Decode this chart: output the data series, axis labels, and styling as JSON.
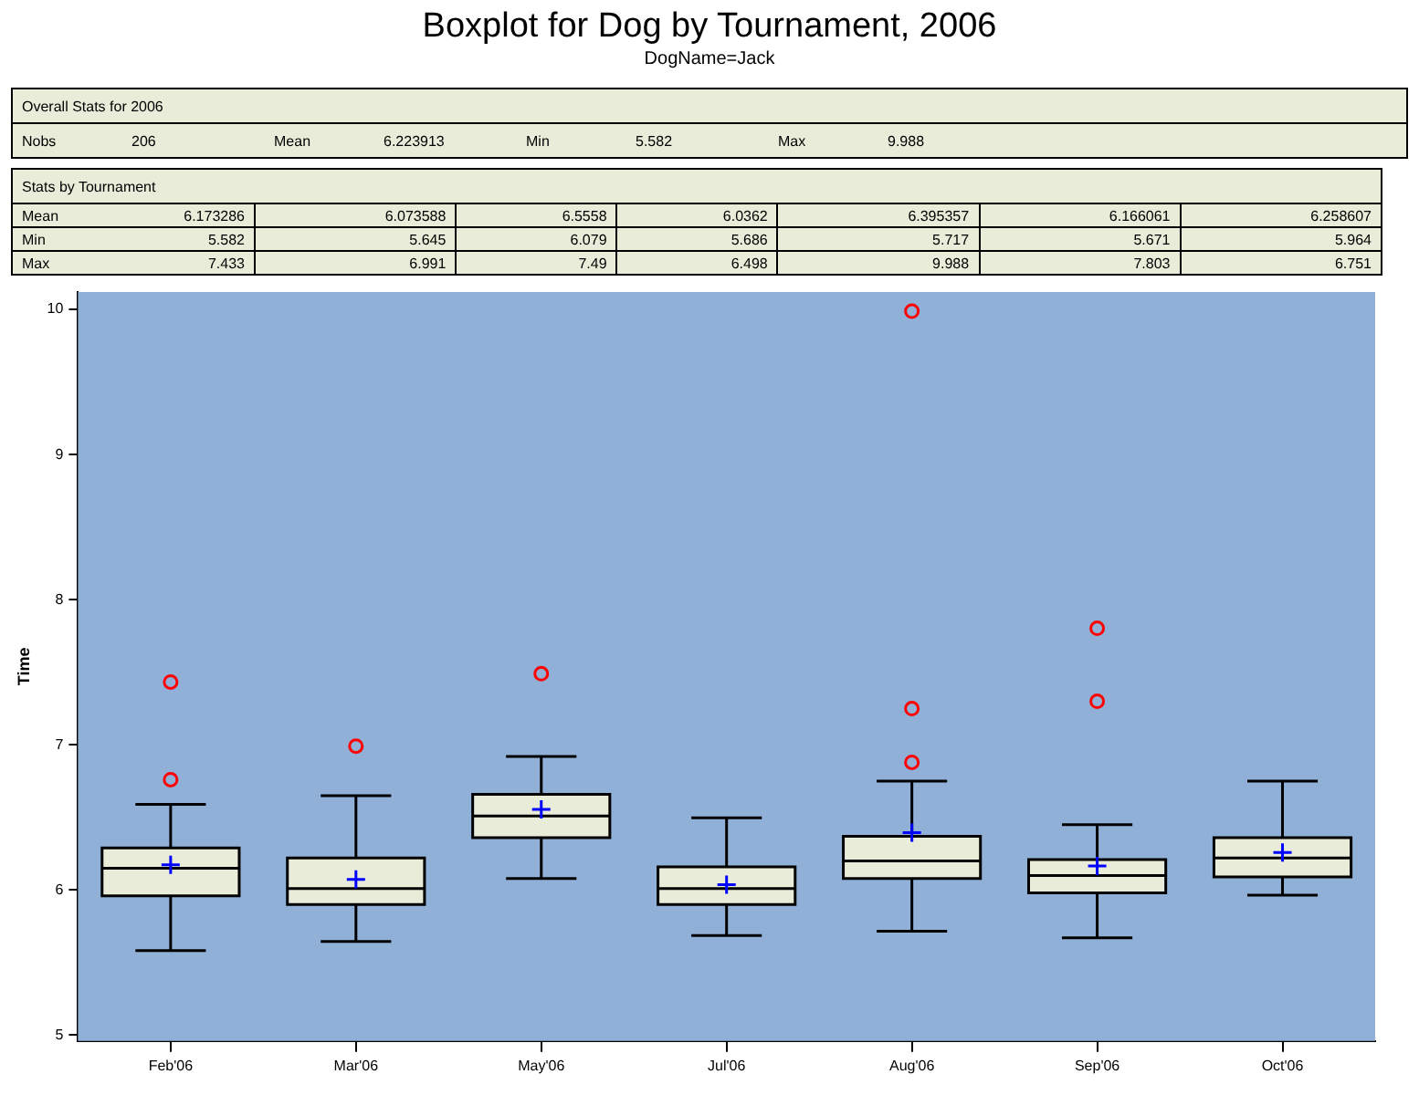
{
  "chart_data": {
    "type": "box",
    "title": "Boxplot for Dog by Tournament, 2006",
    "subtitle": "DogName=Jack",
    "ylabel": "Time",
    "categories": [
      "Feb'06",
      "Mar'06",
      "May'06",
      "Jul'06",
      "Aug'06",
      "Sep'06",
      "Oct'06"
    ],
    "color": "#e8ecd8",
    "boxes": [
      {
        "low": 5.582,
        "q1": 5.96,
        "median": 6.15,
        "q3": 6.29,
        "high": 6.59,
        "mean": 6.173286,
        "outliers": [
          7.433,
          6.76
        ]
      },
      {
        "low": 5.645,
        "q1": 5.9,
        "median": 6.01,
        "q3": 6.22,
        "high": 6.65,
        "mean": 6.073588,
        "outliers": [
          6.991
        ]
      },
      {
        "low": 6.079,
        "q1": 6.36,
        "median": 6.51,
        "q3": 6.66,
        "high": 6.92,
        "mean": 6.5558,
        "outliers": [
          7.49
        ]
      },
      {
        "low": 5.686,
        "q1": 5.9,
        "median": 6.01,
        "q3": 6.16,
        "high": 6.498,
        "mean": 6.0362
      },
      {
        "low": 5.717,
        "q1": 6.08,
        "median": 6.2,
        "q3": 6.37,
        "high": 6.75,
        "mean": 6.395357,
        "outliers": [
          9.988,
          7.25,
          6.88
        ]
      },
      {
        "low": 5.671,
        "q1": 5.98,
        "median": 6.1,
        "q3": 6.21,
        "high": 6.45,
        "mean": 6.166061,
        "outliers": [
          7.803,
          7.3
        ]
      },
      {
        "low": 5.964,
        "q1": 6.09,
        "median": 6.22,
        "q3": 6.36,
        "high": 6.751,
        "mean": 6.258607
      }
    ],
    "ylim": [
      4.96,
      10.12
    ],
    "yticks": [
      5,
      6,
      7,
      8,
      9,
      10
    ],
    "annotations": [
      "Overall Stats for 2006",
      "Nobs",
      "206",
      "Mean",
      "6.223913",
      "Min",
      "5.582",
      "Max",
      "9.988",
      "Stats by Tournament",
      "Mean",
      "6.173286",
      "6.073588",
      "6.5558",
      "6.0362",
      "6.395357",
      "6.166061",
      "6.258607",
      "Min",
      "5.582",
      "5.645",
      "6.079",
      "5.686",
      "5.717",
      "5.671",
      "5.964",
      "Max",
      "7.433",
      "6.991",
      "7.49",
      "6.498",
      "9.988",
      "7.803",
      "6.751"
    ]
  }
}
